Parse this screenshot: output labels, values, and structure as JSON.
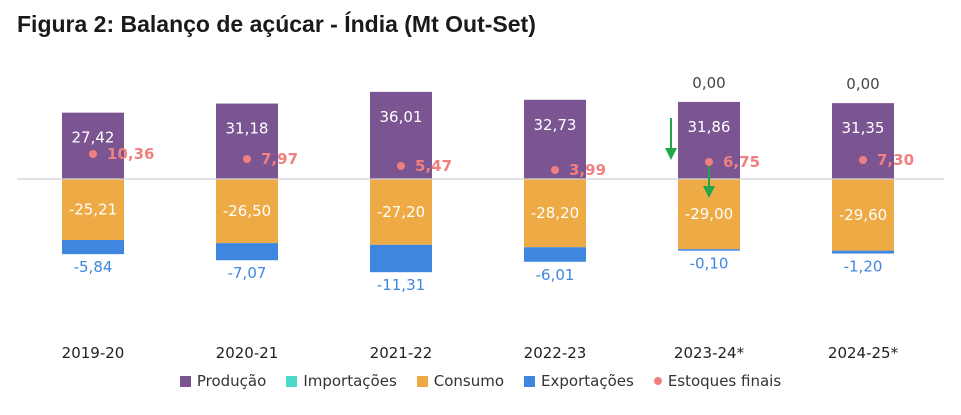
{
  "title": "Figura 2: Balanço de açúcar - Índia (Mt Out-Set)",
  "colors": {
    "producao": "#7b5592",
    "importacoes": "#4dd9c9",
    "consumo": "#eeaa45",
    "exportacoes": "#3e86e0",
    "estoques": "#f08080",
    "arrow": "#22a64a"
  },
  "chart_data": {
    "type": "bar",
    "categories": [
      "2019-20",
      "2020-21",
      "2021-22",
      "2022-23",
      "2023-24*",
      "2024-25*"
    ],
    "series": [
      {
        "name": "Produção",
        "values": [
          27.42,
          31.18,
          36.01,
          32.73,
          31.86,
          31.35
        ],
        "labels": [
          "27,42",
          "31,18",
          "36,01",
          "32,73",
          "31,86",
          "31,35"
        ]
      },
      {
        "name": "Importações",
        "values": [
          0,
          0,
          0,
          0,
          0,
          0
        ],
        "labels": [
          "",
          "",
          "",
          "",
          "0,00",
          "0,00"
        ]
      },
      {
        "name": "Consumo",
        "values": [
          -25.21,
          -26.5,
          -27.2,
          -28.2,
          -29.0,
          -29.6
        ],
        "labels": [
          "-25,21",
          "-26,50",
          "-27,20",
          "-28,20",
          "-29,00",
          "-29,60"
        ]
      },
      {
        "name": "Exportações",
        "values": [
          -5.84,
          -7.07,
          -11.31,
          -6.01,
          -0.1,
          -1.2
        ],
        "labels": [
          "-5,84",
          "-7,07",
          "-11,31",
          "-6,01",
          "-0,10",
          "-1,20"
        ]
      },
      {
        "name": "Estoques finais",
        "values": [
          10.36,
          7.97,
          5.47,
          3.99,
          6.75,
          7.3
        ],
        "labels": [
          "10,36",
          "7,97",
          "5,47",
          "3,99",
          "6,75",
          "7,30"
        ]
      }
    ],
    "ylim": [
      -42,
      42
    ],
    "grid": false,
    "legend_position": "bottom",
    "annotations": [
      {
        "category": "2023-24*",
        "type": "arrow-down",
        "target": "Produção"
      },
      {
        "category": "2023-24*",
        "type": "arrow-down",
        "target": "Consumo"
      }
    ]
  },
  "legend": {
    "items": [
      {
        "label": "Produção",
        "kind": "bar",
        "color": "#7b5592"
      },
      {
        "label": "Importações",
        "kind": "bar",
        "color": "#4dd9c9"
      },
      {
        "label": "Consumo",
        "kind": "bar",
        "color": "#eeaa45"
      },
      {
        "label": "Exportações",
        "kind": "bar",
        "color": "#3e86e0"
      },
      {
        "label": "Estoques finais",
        "kind": "dot",
        "color": "#f08080"
      }
    ]
  }
}
